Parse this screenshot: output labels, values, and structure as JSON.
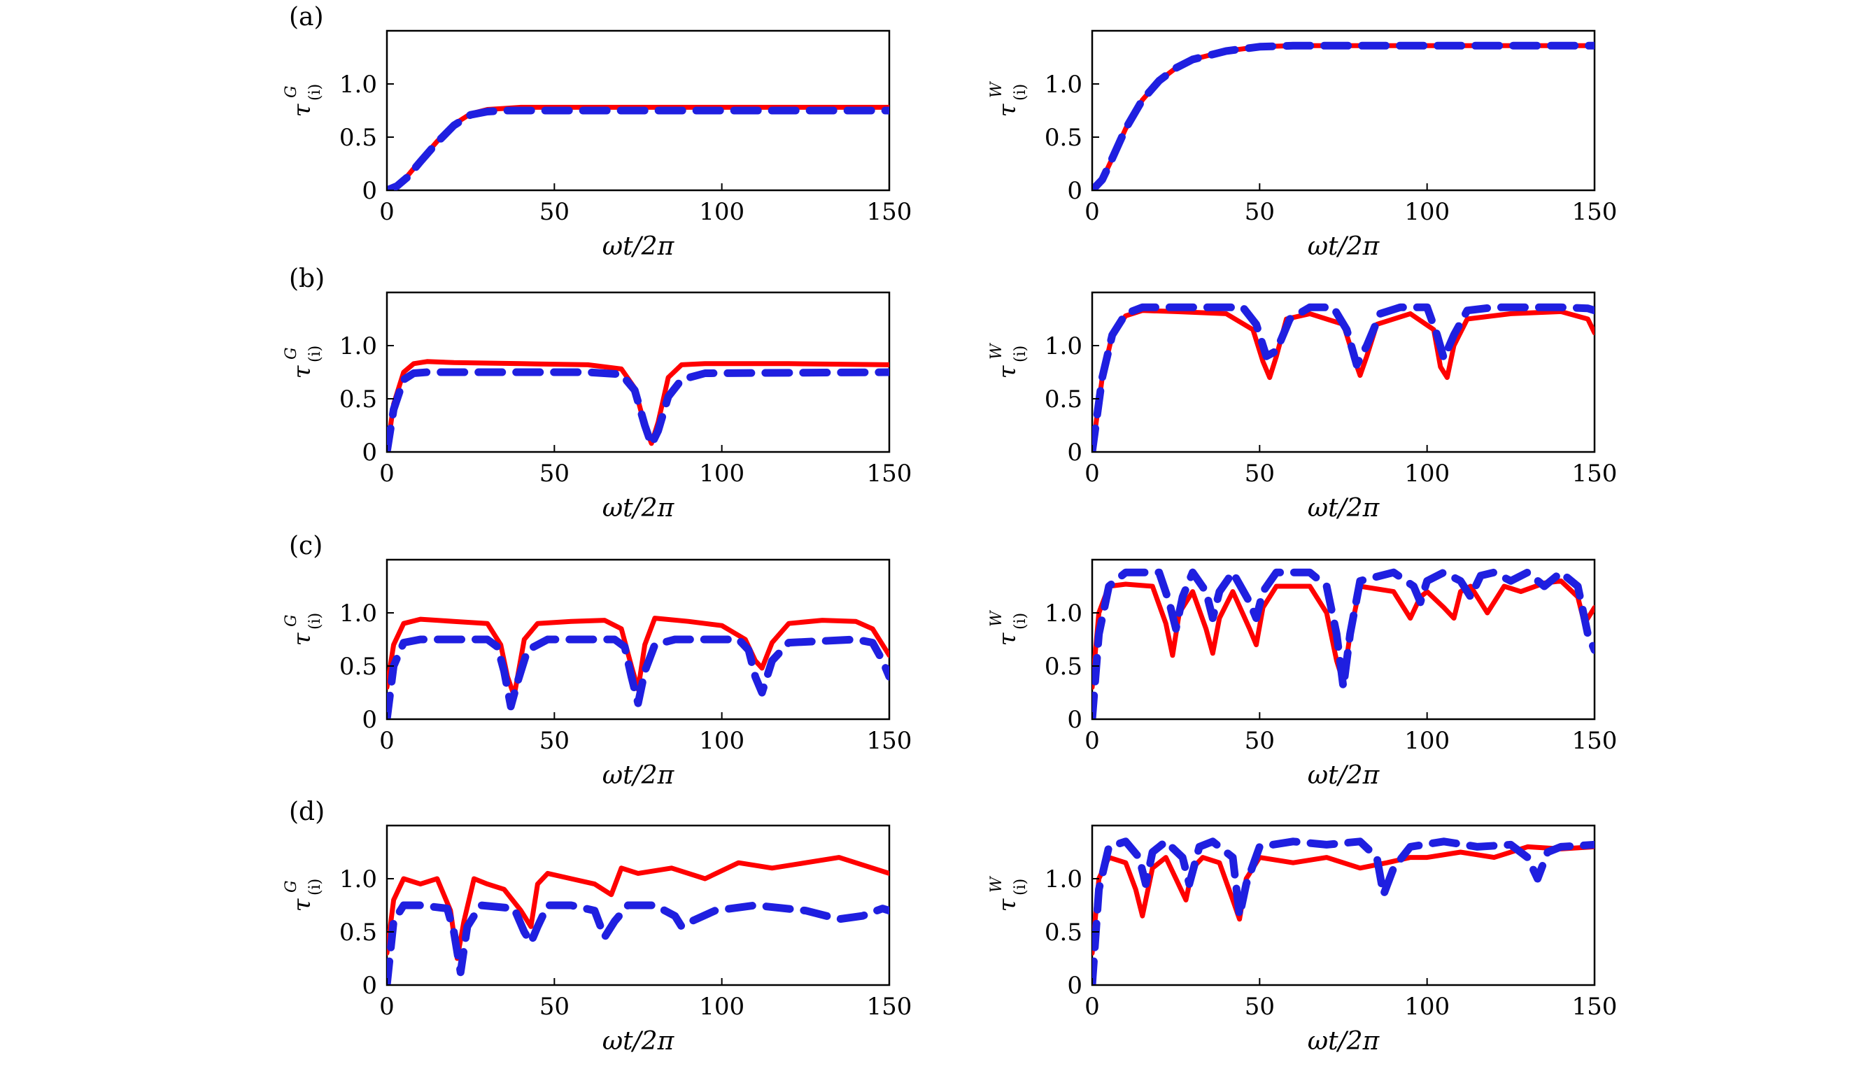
{
  "figure": {
    "colors": {
      "red_series": "#ff0000",
      "blue_series": "#1f1fe0",
      "axes": "#000000",
      "background": "#ffffff"
    },
    "line_styles": {
      "red_series": "solid",
      "blue_series": "dashed"
    }
  },
  "chart_data": [
    {
      "type": "line",
      "panel_label": "(a)",
      "xlabel": "ωt/2π",
      "ylabel": "τ",
      "ylabel_sup": "G",
      "ylabel_sub": "(i)",
      "xlim": [
        0,
        150
      ],
      "ylim": [
        0,
        1.5
      ],
      "xticks": [
        "0",
        "50",
        "100",
        "150"
      ],
      "yticks": [
        "0",
        "0.5",
        "1.0"
      ],
      "series": [
        {
          "style": "solid",
          "color": "#ff0000",
          "x": [
            0,
            3,
            6,
            10,
            15,
            20,
            25,
            30,
            35,
            40,
            60,
            80,
            100,
            120,
            150
          ],
          "y": [
            0,
            0.04,
            0.13,
            0.28,
            0.46,
            0.62,
            0.72,
            0.76,
            0.77,
            0.78,
            0.78,
            0.78,
            0.78,
            0.78,
            0.78
          ]
        },
        {
          "style": "dashed",
          "color": "#1f1fe0",
          "x": [
            0,
            3,
            6,
            10,
            15,
            20,
            25,
            30,
            35,
            40,
            60,
            80,
            100,
            120,
            150
          ],
          "y": [
            0,
            0.04,
            0.12,
            0.27,
            0.45,
            0.61,
            0.71,
            0.74,
            0.75,
            0.75,
            0.75,
            0.75,
            0.75,
            0.75,
            0.75
          ]
        }
      ]
    },
    {
      "type": "line",
      "xlabel": "ωt/2π",
      "ylabel": "τ",
      "ylabel_sup": "W",
      "ylabel_sub": "(i)",
      "xlim": [
        0,
        150
      ],
      "ylim": [
        0,
        1.5
      ],
      "xticks": [
        "0",
        "50",
        "100",
        "150"
      ],
      "yticks": [
        "0",
        "0.5",
        "1.0"
      ],
      "series": [
        {
          "style": "solid",
          "color": "#ff0000",
          "x": [
            0,
            3,
            6,
            10,
            15,
            20,
            25,
            30,
            40,
            50,
            60,
            80,
            100,
            150
          ],
          "y": [
            0,
            0.1,
            0.3,
            0.58,
            0.85,
            1.03,
            1.15,
            1.23,
            1.31,
            1.35,
            1.36,
            1.36,
            1.36,
            1.36
          ]
        },
        {
          "style": "dashed",
          "color": "#1f1fe0",
          "x": [
            0,
            3,
            6,
            10,
            15,
            20,
            25,
            30,
            40,
            50,
            60,
            80,
            100,
            150
          ],
          "y": [
            0,
            0.1,
            0.3,
            0.58,
            0.85,
            1.03,
            1.15,
            1.23,
            1.31,
            1.35,
            1.36,
            1.36,
            1.36,
            1.36
          ]
        }
      ]
    },
    {
      "type": "line",
      "panel_label": "(b)",
      "xlabel": "ωt/2π",
      "ylabel": "τ",
      "ylabel_sup": "G",
      "ylabel_sub": "(i)",
      "xlim": [
        0,
        150
      ],
      "ylim": [
        0,
        1.5
      ],
      "xticks": [
        "0",
        "50",
        "100",
        "150"
      ],
      "yticks": [
        "0",
        "0.5",
        "1.0"
      ],
      "series": [
        {
          "style": "solid",
          "color": "#ff0000",
          "x": [
            0,
            2,
            5,
            8,
            12,
            20,
            40,
            60,
            70,
            74,
            77,
            79,
            81,
            84,
            88,
            95,
            120,
            150
          ],
          "y": [
            0,
            0.45,
            0.75,
            0.83,
            0.85,
            0.84,
            0.83,
            0.82,
            0.78,
            0.6,
            0.25,
            0.08,
            0.28,
            0.7,
            0.82,
            0.83,
            0.83,
            0.82
          ]
        },
        {
          "style": "dashed",
          "color": "#1f1fe0",
          "x": [
            0,
            2,
            5,
            8,
            12,
            20,
            60,
            70,
            74,
            77,
            79,
            81,
            84,
            88,
            95,
            150
          ],
          "y": [
            0,
            0.4,
            0.68,
            0.74,
            0.75,
            0.75,
            0.75,
            0.73,
            0.58,
            0.25,
            0.07,
            0.2,
            0.52,
            0.68,
            0.74,
            0.75
          ]
        }
      ]
    },
    {
      "type": "line",
      "xlabel": "ωt/2π",
      "ylabel": "τ",
      "ylabel_sup": "W",
      "ylabel_sub": "(i)",
      "xlim": [
        0,
        150
      ],
      "ylim": [
        0,
        1.5
      ],
      "xticks": [
        "0",
        "50",
        "100",
        "150"
      ],
      "yticks": [
        "0",
        "0.5",
        "1.0"
      ],
      "series": [
        {
          "style": "solid",
          "color": "#ff0000",
          "x": [
            0,
            3,
            6,
            10,
            15,
            25,
            40,
            48,
            51,
            53,
            55,
            58,
            65,
            75,
            78,
            80,
            82,
            85,
            95,
            102,
            104,
            106,
            108,
            112,
            125,
            140,
            148,
            150
          ],
          "y": [
            0,
            0.7,
            1.1,
            1.28,
            1.33,
            1.32,
            1.3,
            1.15,
            0.85,
            0.7,
            0.9,
            1.25,
            1.3,
            1.2,
            0.9,
            0.72,
            0.9,
            1.2,
            1.3,
            1.15,
            0.8,
            0.7,
            1.0,
            1.25,
            1.3,
            1.32,
            1.25,
            1.12
          ]
        },
        {
          "style": "dashed",
          "color": "#1f1fe0",
          "x": [
            0,
            3,
            6,
            10,
            15,
            25,
            45,
            49,
            52,
            55,
            59,
            65,
            72,
            76,
            79,
            82,
            86,
            92,
            100,
            103,
            105,
            108,
            112,
            120,
            140,
            148,
            150
          ],
          "y": [
            0,
            0.7,
            1.1,
            1.3,
            1.36,
            1.36,
            1.36,
            1.2,
            0.9,
            0.95,
            1.25,
            1.36,
            1.36,
            1.15,
            0.82,
            1.0,
            1.3,
            1.36,
            1.36,
            1.1,
            0.88,
            1.1,
            1.33,
            1.36,
            1.36,
            1.35,
            1.33
          ]
        }
      ]
    },
    {
      "type": "line",
      "panel_label": "(c)",
      "xlabel": "ωt/2π",
      "ylabel": "τ",
      "ylabel_sup": "G",
      "ylabel_sub": "(i)",
      "xlim": [
        0,
        150
      ],
      "ylim": [
        0,
        1.5
      ],
      "xticks": [
        "0",
        "50",
        "100",
        "150"
      ],
      "yticks": [
        "0",
        "0.5",
        "1.0"
      ],
      "series": [
        {
          "style": "solid",
          "color": "#ff0000",
          "x": [
            0,
            2,
            5,
            10,
            20,
            30,
            34,
            36,
            38,
            41,
            45,
            55,
            65,
            70,
            73,
            75,
            77,
            80,
            90,
            100,
            107,
            110,
            112,
            115,
            120,
            130,
            140,
            145,
            150
          ],
          "y": [
            0.3,
            0.7,
            0.9,
            0.94,
            0.92,
            0.9,
            0.7,
            0.4,
            0.22,
            0.75,
            0.9,
            0.92,
            0.93,
            0.85,
            0.5,
            0.28,
            0.7,
            0.95,
            0.92,
            0.88,
            0.75,
            0.55,
            0.48,
            0.72,
            0.9,
            0.93,
            0.92,
            0.85,
            0.6
          ]
        },
        {
          "style": "dashed",
          "color": "#1f1fe0",
          "x": [
            0,
            2,
            5,
            10,
            30,
            33,
            35,
            37,
            39,
            42,
            48,
            68,
            71,
            73,
            75,
            77,
            80,
            86,
            105,
            108,
            110,
            112,
            115,
            120,
            140,
            145,
            148,
            150
          ],
          "y": [
            0,
            0.5,
            0.72,
            0.75,
            0.75,
            0.68,
            0.45,
            0.12,
            0.35,
            0.65,
            0.75,
            0.75,
            0.68,
            0.4,
            0.15,
            0.45,
            0.7,
            0.75,
            0.75,
            0.65,
            0.4,
            0.25,
            0.55,
            0.72,
            0.75,
            0.72,
            0.55,
            0.4
          ]
        }
      ]
    },
    {
      "type": "line",
      "xlabel": "ωt/2π",
      "ylabel": "τ",
      "ylabel_sup": "W",
      "ylabel_sub": "(i)",
      "xlim": [
        0,
        150
      ],
      "ylim": [
        0,
        1.5
      ],
      "xticks": [
        "0",
        "50",
        "100",
        "150"
      ],
      "yticks": [
        "0",
        "0.5",
        "1.0"
      ],
      "series": [
        {
          "style": "solid",
          "color": "#ff0000",
          "x": [
            0,
            2,
            5,
            10,
            18,
            22,
            24,
            26,
            30,
            34,
            36,
            38,
            42,
            47,
            49,
            51,
            55,
            65,
            70,
            73,
            75,
            77,
            80,
            90,
            95,
            98,
            100,
            105,
            108,
            110,
            113,
            118,
            121,
            123,
            128,
            135,
            140,
            145,
            147,
            150
          ],
          "y": [
            0.3,
            1.0,
            1.25,
            1.27,
            1.25,
            0.9,
            0.6,
            1.0,
            1.2,
            0.85,
            0.62,
            0.95,
            1.2,
            0.85,
            0.7,
            1.05,
            1.25,
            1.25,
            1.0,
            0.55,
            0.35,
            0.8,
            1.25,
            1.2,
            0.95,
            1.15,
            1.2,
            1.05,
            0.95,
            1.2,
            1.25,
            1.0,
            1.15,
            1.25,
            1.2,
            1.28,
            1.3,
            1.15,
            0.9,
            1.05
          ]
        },
        {
          "style": "dashed",
          "color": "#1f1fe0",
          "x": [
            0,
            2,
            5,
            10,
            20,
            23,
            25,
            27,
            30,
            34,
            36,
            38,
            42,
            47,
            49,
            51,
            55,
            65,
            70,
            73,
            75,
            77,
            80,
            90,
            96,
            98,
            100,
            105,
            110,
            113,
            116,
            120,
            125,
            130,
            135,
            140,
            145,
            148,
            150
          ],
          "y": [
            0,
            0.8,
            1.25,
            1.38,
            1.38,
            1.1,
            0.85,
            1.15,
            1.38,
            1.2,
            0.95,
            1.2,
            1.38,
            1.1,
            0.95,
            1.2,
            1.38,
            1.38,
            1.25,
            0.8,
            0.3,
            0.8,
            1.3,
            1.38,
            1.25,
            1.1,
            1.3,
            1.38,
            1.3,
            1.15,
            1.35,
            1.38,
            1.3,
            1.38,
            1.25,
            1.38,
            1.25,
            0.8,
            0.65
          ]
        }
      ]
    },
    {
      "type": "line",
      "panel_label": "(d)",
      "xlabel": "ωt/2π",
      "ylabel": "τ",
      "ylabel_sup": "G",
      "ylabel_sub": "(i)",
      "xlim": [
        0,
        150
      ],
      "ylim": [
        0,
        1.5
      ],
      "xticks": [
        "0",
        "50",
        "100",
        "150"
      ],
      "yticks": [
        "0",
        "0.5",
        "1.0"
      ],
      "series": [
        {
          "style": "solid",
          "color": "#ff0000",
          "x": [
            0,
            2,
            5,
            10,
            15,
            19,
            21,
            23,
            26,
            30,
            35,
            40,
            43,
            45,
            48,
            55,
            62,
            67,
            70,
            75,
            85,
            95,
            105,
            115,
            125,
            135,
            145,
            150
          ],
          "y": [
            0.3,
            0.8,
            1.0,
            0.95,
            1.0,
            0.7,
            0.25,
            0.6,
            1.0,
            0.95,
            0.9,
            0.7,
            0.55,
            0.95,
            1.05,
            1.0,
            0.95,
            0.85,
            1.1,
            1.05,
            1.1,
            1.0,
            1.15,
            1.1,
            1.15,
            1.2,
            1.1,
            1.05
          ]
        },
        {
          "style": "dashed",
          "color": "#1f1fe0",
          "x": [
            0,
            2,
            5,
            10,
            18,
            20,
            22,
            24,
            28,
            38,
            41,
            43,
            45,
            48,
            55,
            62,
            65,
            68,
            72,
            80,
            86,
            88,
            91,
            98,
            110,
            125,
            135,
            142,
            148,
            150
          ],
          "y": [
            0,
            0.6,
            0.75,
            0.75,
            0.72,
            0.5,
            0.12,
            0.55,
            0.75,
            0.72,
            0.5,
            0.4,
            0.55,
            0.75,
            0.75,
            0.7,
            0.45,
            0.6,
            0.75,
            0.75,
            0.65,
            0.55,
            0.6,
            0.7,
            0.75,
            0.7,
            0.62,
            0.65,
            0.72,
            0.7
          ]
        }
      ]
    },
    {
      "type": "line",
      "xlabel": "ωt/2π",
      "ylabel": "τ",
      "ylabel_sup": "W",
      "ylabel_sub": "(i)",
      "xlim": [
        0,
        150
      ],
      "ylim": [
        0,
        1.5
      ],
      "xticks": [
        "0",
        "50",
        "100",
        "150"
      ],
      "yticks": [
        "0",
        "0.5",
        "1.0"
      ],
      "series": [
        {
          "style": "solid",
          "color": "#ff0000",
          "x": [
            0,
            2,
            5,
            10,
            13,
            15,
            18,
            22,
            25,
            28,
            30,
            33,
            38,
            42,
            44,
            46,
            50,
            60,
            70,
            80,
            88,
            95,
            100,
            110,
            120,
            130,
            140,
            150
          ],
          "y": [
            0.3,
            1.0,
            1.2,
            1.15,
            0.9,
            0.65,
            1.1,
            1.2,
            1.0,
            0.8,
            1.1,
            1.2,
            1.15,
            0.8,
            0.62,
            1.0,
            1.2,
            1.15,
            1.2,
            1.1,
            1.15,
            1.2,
            1.2,
            1.25,
            1.2,
            1.3,
            1.28,
            1.3
          ]
        },
        {
          "style": "dashed",
          "color": "#1f1fe0",
          "x": [
            0,
            2,
            5,
            10,
            14,
            16,
            18,
            22,
            27,
            29,
            32,
            36,
            42,
            44,
            46,
            50,
            60,
            70,
            80,
            85,
            87,
            90,
            95,
            105,
            115,
            125,
            130,
            133,
            136,
            140,
            150
          ],
          "y": [
            0,
            0.9,
            1.3,
            1.35,
            1.2,
            0.95,
            1.25,
            1.35,
            1.2,
            0.95,
            1.3,
            1.35,
            1.2,
            0.65,
            0.95,
            1.3,
            1.35,
            1.32,
            1.35,
            1.2,
            0.85,
            1.1,
            1.3,
            1.35,
            1.3,
            1.32,
            1.2,
            1.0,
            1.25,
            1.3,
            1.32
          ]
        }
      ]
    }
  ]
}
